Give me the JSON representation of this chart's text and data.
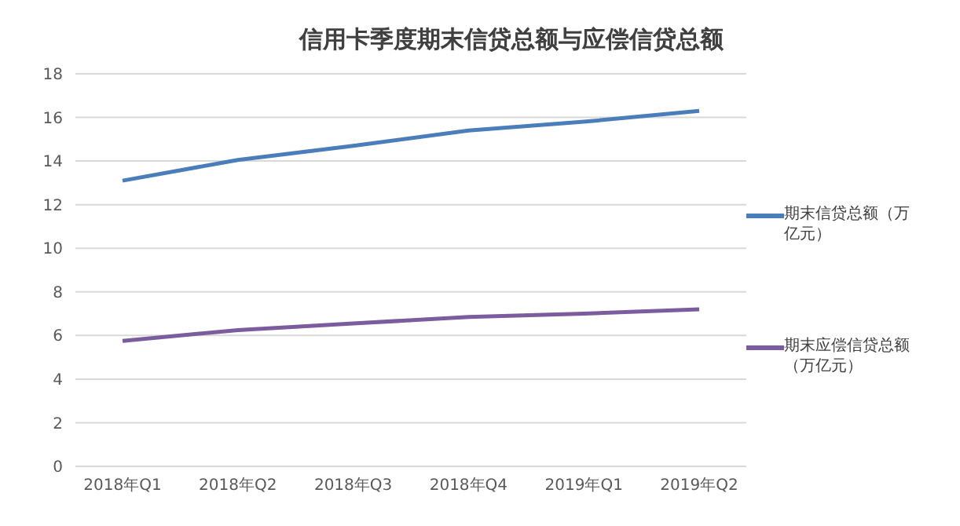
{
  "chart_data": {
    "type": "line",
    "title": "信用卡季度期末信贷总额与应偿信贷总额",
    "categories": [
      "2018年Q1",
      "2018年Q2",
      "2018年Q3",
      "2018年Q4",
      "2019年Q1",
      "2019年Q2"
    ],
    "series": [
      {
        "name": "期末信贷总额（万亿元）",
        "color": "#4a7ebb",
        "values": [
          13.1,
          14.05,
          14.7,
          15.4,
          15.8,
          16.3
        ]
      },
      {
        "name": "期末应偿信贷总额（万亿元）",
        "color": "#7b5c9e",
        "values": [
          5.75,
          6.25,
          6.55,
          6.85,
          7.0,
          7.2
        ]
      }
    ],
    "ylim": [
      0,
      18
    ],
    "yticks": [
      0,
      2,
      4,
      6,
      8,
      10,
      12,
      14,
      16,
      18
    ],
    "grid": "y",
    "legend": "right",
    "marker": "none",
    "line_style": "solid"
  }
}
